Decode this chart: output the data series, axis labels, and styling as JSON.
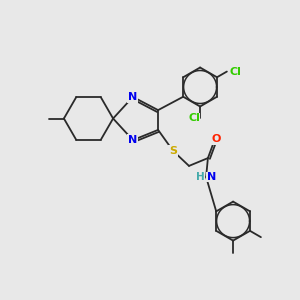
{
  "background_color": "#e8e8e8",
  "bond_color": "#2a2a2a",
  "atom_colors": {
    "N": "#0000ee",
    "S": "#ccaa00",
    "O": "#ff2200",
    "Cl": "#33cc00",
    "H": "#44aaaa",
    "C": "#2a2a2a"
  },
  "lw": 1.3
}
